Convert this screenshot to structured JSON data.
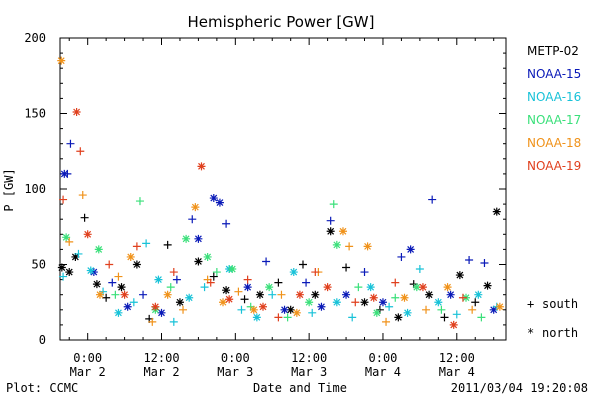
{
  "chart_data": {
    "type": "scatter",
    "title": "Hemispheric Power [GW]",
    "xlabel": "Date and Time",
    "ylabel": "P [GW]",
    "x_unit": "hours since 2011-03-02 00:00 UT",
    "xlim": [
      -4.5,
      68
    ],
    "ylim": [
      0,
      200
    ],
    "yticks": [
      0,
      50,
      100,
      150,
      200
    ],
    "xticks": [
      {
        "x": 0,
        "line1": "0:00",
        "line2": "Mar 2"
      },
      {
        "x": 12,
        "line1": "12:00",
        "line2": "Mar 2"
      },
      {
        "x": 24,
        "line1": "0:00",
        "line2": "Mar 3"
      },
      {
        "x": 36,
        "line1": "12:00",
        "line2": "Mar 3"
      },
      {
        "x": 48,
        "line1": "0:00",
        "line2": "Mar 4"
      },
      {
        "x": 60,
        "line1": "12:00",
        "line2": "Mar 4"
      }
    ],
    "marker_legend": [
      {
        "symbol": "+",
        "label": "south"
      },
      {
        "symbol": "*",
        "label": "north"
      }
    ],
    "legend_position": "right",
    "series": [
      {
        "name": "METP-02",
        "color": "#000000",
        "points": [
          {
            "x": -4.2,
            "y": 48,
            "m": "*"
          },
          {
            "x": -3.0,
            "y": 45,
            "m": "*"
          },
          {
            "x": -2.0,
            "y": 55,
            "m": "*"
          },
          {
            "x": -0.5,
            "y": 81,
            "m": "+"
          },
          {
            "x": 1.5,
            "y": 37,
            "m": "*"
          },
          {
            "x": 3.0,
            "y": 28,
            "m": "+"
          },
          {
            "x": 5.5,
            "y": 35,
            "m": "*"
          },
          {
            "x": 8.0,
            "y": 50,
            "m": "*"
          },
          {
            "x": 10.0,
            "y": 14,
            "m": "+"
          },
          {
            "x": 13.0,
            "y": 63,
            "m": "+"
          },
          {
            "x": 15.0,
            "y": 25,
            "m": "*"
          },
          {
            "x": 18.0,
            "y": 52,
            "m": "*"
          },
          {
            "x": 20.5,
            "y": 42,
            "m": "+"
          },
          {
            "x": 22.5,
            "y": 33,
            "m": "*"
          },
          {
            "x": 25.5,
            "y": 27,
            "m": "+"
          },
          {
            "x": 28.0,
            "y": 30,
            "m": "*"
          },
          {
            "x": 31.0,
            "y": 38,
            "m": "+"
          },
          {
            "x": 33.0,
            "y": 20,
            "m": "*"
          },
          {
            "x": 35.0,
            "y": 50,
            "m": "+"
          },
          {
            "x": 37.0,
            "y": 30,
            "m": "*"
          },
          {
            "x": 39.5,
            "y": 72,
            "m": "*"
          },
          {
            "x": 42.0,
            "y": 48,
            "m": "+"
          },
          {
            "x": 45.0,
            "y": 25,
            "m": "*"
          },
          {
            "x": 47.5,
            "y": 20,
            "m": "+"
          },
          {
            "x": 50.5,
            "y": 15,
            "m": "*"
          },
          {
            "x": 53.0,
            "y": 37,
            "m": "+"
          },
          {
            "x": 55.5,
            "y": 30,
            "m": "*"
          },
          {
            "x": 58.0,
            "y": 15,
            "m": "+"
          },
          {
            "x": 60.5,
            "y": 43,
            "m": "*"
          },
          {
            "x": 63.0,
            "y": 25,
            "m": "+"
          },
          {
            "x": 65.0,
            "y": 36,
            "m": "*"
          },
          {
            "x": 66.5,
            "y": 85,
            "m": "*"
          }
        ]
      },
      {
        "name": "NOAA-15",
        "color": "#0a1ab8",
        "points": [
          {
            "x": -3.8,
            "y": 110,
            "m": "*"
          },
          {
            "x": -3.3,
            "y": 110,
            "m": "+"
          },
          {
            "x": -2.8,
            "y": 130,
            "m": "+"
          },
          {
            "x": 1.0,
            "y": 45,
            "m": "*"
          },
          {
            "x": 4.0,
            "y": 38,
            "m": "+"
          },
          {
            "x": 6.5,
            "y": 22,
            "m": "*"
          },
          {
            "x": 9.0,
            "y": 30,
            "m": "+"
          },
          {
            "x": 12.0,
            "y": 18,
            "m": "*"
          },
          {
            "x": 14.5,
            "y": 40,
            "m": "+"
          },
          {
            "x": 17.0,
            "y": 80,
            "m": "+"
          },
          {
            "x": 18.0,
            "y": 67,
            "m": "*"
          },
          {
            "x": 20.5,
            "y": 94,
            "m": "*"
          },
          {
            "x": 21.5,
            "y": 91,
            "m": "*"
          },
          {
            "x": 22.5,
            "y": 77,
            "m": "+"
          },
          {
            "x": 26.0,
            "y": 35,
            "m": "*"
          },
          {
            "x": 29.0,
            "y": 52,
            "m": "+"
          },
          {
            "x": 32.0,
            "y": 20,
            "m": "*"
          },
          {
            "x": 35.5,
            "y": 38,
            "m": "+"
          },
          {
            "x": 38.0,
            "y": 22,
            "m": "*"
          },
          {
            "x": 39.5,
            "y": 79,
            "m": "+"
          },
          {
            "x": 42.0,
            "y": 30,
            "m": "*"
          },
          {
            "x": 45.0,
            "y": 45,
            "m": "+"
          },
          {
            "x": 48.0,
            "y": 25,
            "m": "*"
          },
          {
            "x": 51.0,
            "y": 55,
            "m": "+"
          },
          {
            "x": 52.5,
            "y": 60,
            "m": "*"
          },
          {
            "x": 56.0,
            "y": 93,
            "m": "+"
          },
          {
            "x": 59.0,
            "y": 30,
            "m": "*"
          },
          {
            "x": 62.0,
            "y": 53,
            "m": "+"
          },
          {
            "x": 64.5,
            "y": 51,
            "m": "+"
          },
          {
            "x": 66.0,
            "y": 20,
            "m": "*"
          }
        ]
      },
      {
        "name": "NOAA-16",
        "color": "#18c2d8",
        "points": [
          {
            "x": -4.0,
            "y": 42,
            "m": "+"
          },
          {
            "x": -1.5,
            "y": 57,
            "m": "+"
          },
          {
            "x": 0.5,
            "y": 46,
            "m": "*"
          },
          {
            "x": 2.5,
            "y": 32,
            "m": "+"
          },
          {
            "x": 5.0,
            "y": 18,
            "m": "*"
          },
          {
            "x": 7.5,
            "y": 25,
            "m": "+"
          },
          {
            "x": 9.5,
            "y": 64,
            "m": "+"
          },
          {
            "x": 11.5,
            "y": 40,
            "m": "*"
          },
          {
            "x": 14.0,
            "y": 12,
            "m": "+"
          },
          {
            "x": 16.5,
            "y": 28,
            "m": "*"
          },
          {
            "x": 19.0,
            "y": 35,
            "m": "+"
          },
          {
            "x": 23.0,
            "y": 47,
            "m": "*"
          },
          {
            "x": 25.0,
            "y": 20,
            "m": "+"
          },
          {
            "x": 27.5,
            "y": 15,
            "m": "*"
          },
          {
            "x": 30.0,
            "y": 30,
            "m": "+"
          },
          {
            "x": 33.5,
            "y": 45,
            "m": "*"
          },
          {
            "x": 36.5,
            "y": 18,
            "m": "+"
          },
          {
            "x": 40.5,
            "y": 25,
            "m": "*"
          },
          {
            "x": 43.0,
            "y": 15,
            "m": "+"
          },
          {
            "x": 46.0,
            "y": 35,
            "m": "*"
          },
          {
            "x": 49.0,
            "y": 22,
            "m": "+"
          },
          {
            "x": 52.0,
            "y": 18,
            "m": "*"
          },
          {
            "x": 54.0,
            "y": 47,
            "m": "+"
          },
          {
            "x": 57.0,
            "y": 25,
            "m": "*"
          },
          {
            "x": 60.0,
            "y": 17,
            "m": "+"
          },
          {
            "x": 63.5,
            "y": 30,
            "m": "*"
          },
          {
            "x": 66.5,
            "y": 22,
            "m": "+"
          }
        ]
      },
      {
        "name": "NOAA-17",
        "color": "#3ae07a",
        "points": [
          {
            "x": -3.5,
            "y": 68,
            "m": "*"
          },
          {
            "x": 1.8,
            "y": 60,
            "m": "*"
          },
          {
            "x": 4.5,
            "y": 30,
            "m": "+"
          },
          {
            "x": 8.5,
            "y": 92,
            "m": "+"
          },
          {
            "x": 11.0,
            "y": 20,
            "m": "*"
          },
          {
            "x": 13.5,
            "y": 35,
            "m": "+"
          },
          {
            "x": 16.0,
            "y": 67,
            "m": "*"
          },
          {
            "x": 19.5,
            "y": 55,
            "m": "*"
          },
          {
            "x": 21.0,
            "y": 45,
            "m": "+"
          },
          {
            "x": 23.5,
            "y": 47,
            "m": "*"
          },
          {
            "x": 26.5,
            "y": 22,
            "m": "+"
          },
          {
            "x": 29.5,
            "y": 35,
            "m": "*"
          },
          {
            "x": 32.5,
            "y": 15,
            "m": "+"
          },
          {
            "x": 36.0,
            "y": 25,
            "m": "*"
          },
          {
            "x": 40.0,
            "y": 90,
            "m": "+"
          },
          {
            "x": 40.5,
            "y": 63,
            "m": "*"
          },
          {
            "x": 44.0,
            "y": 35,
            "m": "+"
          },
          {
            "x": 47.0,
            "y": 18,
            "m": "*"
          },
          {
            "x": 50.0,
            "y": 28,
            "m": "+"
          },
          {
            "x": 53.5,
            "y": 35,
            "m": "*"
          },
          {
            "x": 57.5,
            "y": 20,
            "m": "+"
          },
          {
            "x": 61.5,
            "y": 28,
            "m": "*"
          },
          {
            "x": 64.0,
            "y": 15,
            "m": "+"
          }
        ]
      },
      {
        "name": "NOAA-18",
        "color": "#f0921a",
        "points": [
          {
            "x": -4.3,
            "y": 185,
            "m": "*"
          },
          {
            "x": -3.0,
            "y": 65,
            "m": "+"
          },
          {
            "x": -0.8,
            "y": 96,
            "m": "+"
          },
          {
            "x": 2.0,
            "y": 30,
            "m": "*"
          },
          {
            "x": 5.0,
            "y": 42,
            "m": "+"
          },
          {
            "x": 7.0,
            "y": 55,
            "m": "*"
          },
          {
            "x": 10.5,
            "y": 12,
            "m": "+"
          },
          {
            "x": 13.0,
            "y": 30,
            "m": "*"
          },
          {
            "x": 15.5,
            "y": 20,
            "m": "+"
          },
          {
            "x": 17.5,
            "y": 88,
            "m": "*"
          },
          {
            "x": 19.5,
            "y": 40,
            "m": "+"
          },
          {
            "x": 22.0,
            "y": 25,
            "m": "*"
          },
          {
            "x": 24.5,
            "y": 32,
            "m": "+"
          },
          {
            "x": 27.0,
            "y": 20,
            "m": "*"
          },
          {
            "x": 31.5,
            "y": 30,
            "m": "+"
          },
          {
            "x": 34.0,
            "y": 18,
            "m": "*"
          },
          {
            "x": 37.5,
            "y": 45,
            "m": "+"
          },
          {
            "x": 41.5,
            "y": 72,
            "m": "*"
          },
          {
            "x": 42.5,
            "y": 62,
            "m": "+"
          },
          {
            "x": 45.5,
            "y": 62,
            "m": "*"
          },
          {
            "x": 48.5,
            "y": 12,
            "m": "+"
          },
          {
            "x": 51.5,
            "y": 28,
            "m": "*"
          },
          {
            "x": 55.0,
            "y": 20,
            "m": "+"
          },
          {
            "x": 58.5,
            "y": 35,
            "m": "*"
          },
          {
            "x": 62.5,
            "y": 20,
            "m": "+"
          },
          {
            "x": 67.0,
            "y": 22,
            "m": "*"
          }
        ]
      },
      {
        "name": "NOAA-19",
        "color": "#e0401e",
        "points": [
          {
            "x": -4.0,
            "y": 93,
            "m": "+"
          },
          {
            "x": -1.8,
            "y": 151,
            "m": "*"
          },
          {
            "x": -1.2,
            "y": 125,
            "m": "+"
          },
          {
            "x": 0.0,
            "y": 70,
            "m": "*"
          },
          {
            "x": 3.5,
            "y": 50,
            "m": "+"
          },
          {
            "x": 6.0,
            "y": 30,
            "m": "*"
          },
          {
            "x": 8.0,
            "y": 62,
            "m": "+"
          },
          {
            "x": 11.0,
            "y": 22,
            "m": "*"
          },
          {
            "x": 14.0,
            "y": 45,
            "m": "+"
          },
          {
            "x": 18.5,
            "y": 115,
            "m": "*"
          },
          {
            "x": 20.0,
            "y": 38,
            "m": "+"
          },
          {
            "x": 23.0,
            "y": 27,
            "m": "*"
          },
          {
            "x": 26.0,
            "y": 40,
            "m": "+"
          },
          {
            "x": 28.5,
            "y": 22,
            "m": "*"
          },
          {
            "x": 31.0,
            "y": 15,
            "m": "+"
          },
          {
            "x": 34.5,
            "y": 30,
            "m": "*"
          },
          {
            "x": 37.0,
            "y": 45,
            "m": "+"
          },
          {
            "x": 39.0,
            "y": 35,
            "m": "*"
          },
          {
            "x": 43.5,
            "y": 25,
            "m": "+"
          },
          {
            "x": 46.5,
            "y": 28,
            "m": "*"
          },
          {
            "x": 50.0,
            "y": 38,
            "m": "+"
          },
          {
            "x": 54.5,
            "y": 35,
            "m": "*"
          },
          {
            "x": 59.5,
            "y": 10,
            "m": "*"
          },
          {
            "x": 61.0,
            "y": 28,
            "m": "+"
          }
        ]
      }
    ]
  },
  "footer": {
    "left": "Plot: CCMC",
    "right": "2011/03/04 19:20:08"
  }
}
